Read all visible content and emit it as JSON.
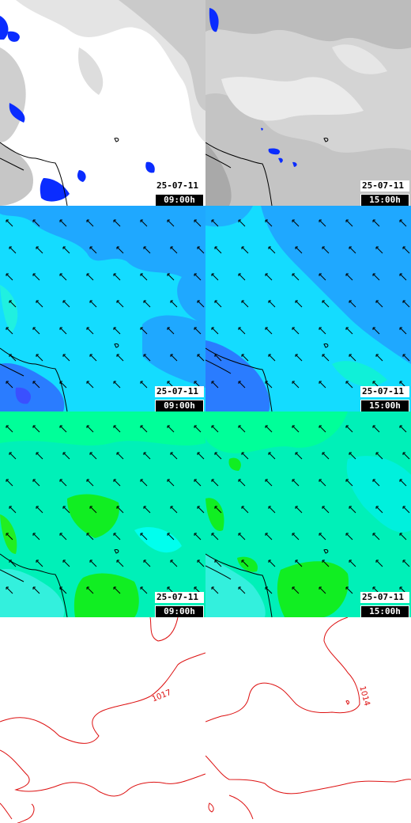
{
  "columns": [
    {
      "date": "25-07-11",
      "hour": "09:00h"
    },
    {
      "date": "25-07-11",
      "hour": "15:00h"
    }
  ],
  "rows": [
    {
      "field": "cloud-cover",
      "palette": [
        "#ffffff",
        "#e6e6e6",
        "#cccccc",
        "#b8b8b8"
      ],
      "accent": "#0a2cff"
    },
    {
      "field": "wind-blue",
      "palette": [
        "#00e6ff",
        "#13ccff",
        "#1fb4ff",
        "#2a8cff"
      ],
      "accent": "#2a5cff"
    },
    {
      "field": "wind-green",
      "palette": [
        "#00f0c8",
        "#00ff99",
        "#22ee44",
        "#00ffee"
      ],
      "accent": "#00dd00"
    },
    {
      "field": "isobars",
      "palette": [
        "#ffffff"
      ],
      "accent": "#dd1111"
    }
  ],
  "isobar_labels": [
    "1017",
    "1014"
  ]
}
